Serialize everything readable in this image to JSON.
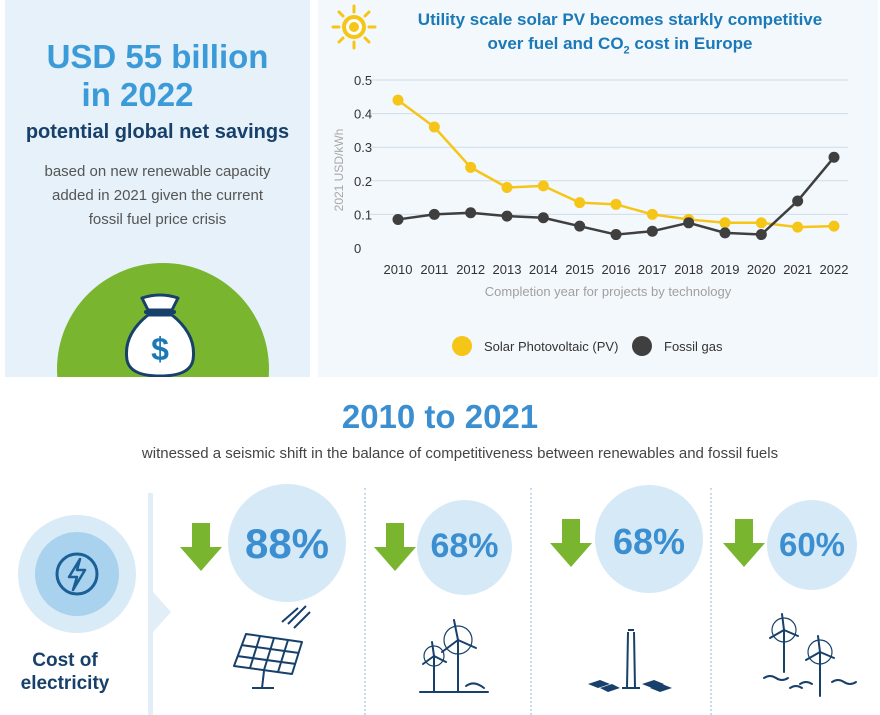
{
  "left_panel": {
    "headline_line1": "USD 55 billion",
    "headline_line2": "in 2022",
    "subheadline": "potential global net savings",
    "description_line1": "based on new renewable capacity",
    "description_line2": "added in 2021 given the current",
    "description_line3": "fossil fuel price crisis"
  },
  "chart_data": {
    "type": "line",
    "title_part1": "Utility scale solar PV becomes starkly competitive",
    "title_part2a": "over fuel and CO",
    "title_part2_sub": "2",
    "title_part2b": " cost in Europe",
    "ylabel": "2021 USD/kWh",
    "xlabel": "Completion year for projects by technology",
    "x": [
      "2010",
      "2011",
      "2012",
      "2013",
      "2014",
      "2015",
      "2016",
      "2017",
      "2018",
      "2019",
      "2020",
      "2021",
      "2022"
    ],
    "ylim": [
      0,
      0.5
    ],
    "yticks": [
      "0",
      "0.1",
      "0.2",
      "0.3",
      "0.4",
      "0.5"
    ],
    "series": [
      {
        "name": "Solar Photovoltaic (PV)",
        "color": "#f5c518",
        "values": [
          0.44,
          0.36,
          0.24,
          0.18,
          0.185,
          0.135,
          0.13,
          0.1,
          0.085,
          0.075,
          0.075,
          0.062,
          0.065
        ]
      },
      {
        "name": "Fossil gas",
        "color": "#3f3f3f",
        "values": [
          0.085,
          0.1,
          0.105,
          0.095,
          0.09,
          0.065,
          0.04,
          0.05,
          0.075,
          0.045,
          0.04,
          0.14,
          0.27
        ]
      }
    ],
    "grid": "horizontal",
    "legend_position": "bottom"
  },
  "bottom": {
    "years": "2010 to 2021",
    "subline": "witnessed a seismic shift in the balance of competitiveness between renewables and fossil fuels",
    "cost_label_line1": "Cost of",
    "cost_label_line2": "electricity",
    "stats": [
      {
        "value": "88%",
        "icon": "solar-panel-icon"
      },
      {
        "value": "68%",
        "icon": "onshore-wind-icon"
      },
      {
        "value": "68%",
        "icon": "concentrated-solar-icon"
      },
      {
        "value": "60%",
        "icon": "offshore-wind-icon"
      }
    ]
  },
  "colors": {
    "accent_blue": "#3b9bd8",
    "dark_navy": "#17406a",
    "green": "#79b52f",
    "solar_yellow": "#f5c518",
    "gas_dark": "#3f3f3f"
  }
}
